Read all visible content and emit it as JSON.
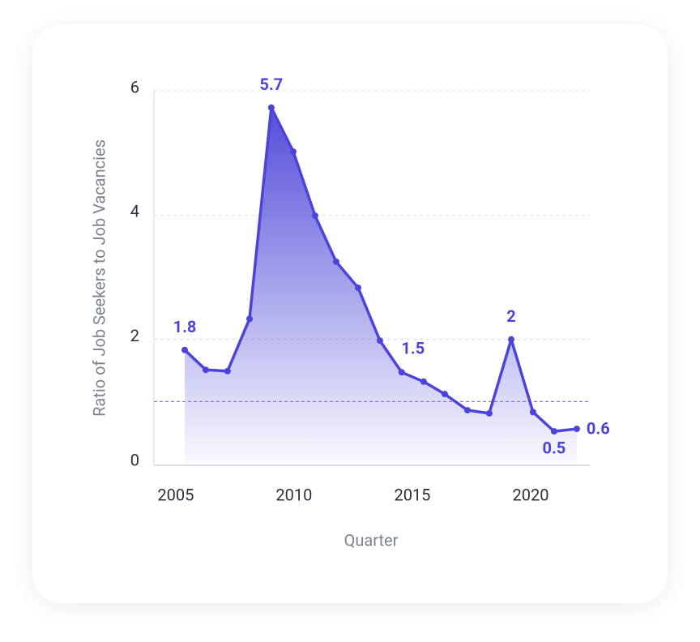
{
  "chart_data": {
    "type": "area",
    "x_label": "Quarter",
    "y_label": "Ratio of Job Seekers to Job Vacancies",
    "x": [
      2005.38,
      2006.27,
      2007.19,
      2008.12,
      2009.04,
      2009.97,
      2010.89,
      2011.78,
      2012.71,
      2013.63,
      2014.55,
      2015.48,
      2016.37,
      2017.33,
      2018.25,
      2019.18,
      2020.1,
      2020.99,
      2021.95
    ],
    "values": [
      1.83,
      1.51,
      1.49,
      2.33,
      5.73,
      5.02,
      3.99,
      3.25,
      2.83,
      1.98,
      1.47,
      1.32,
      1.12,
      0.86,
      0.81,
      2.0,
      0.83,
      0.52,
      0.56
    ],
    "value_labels": [
      "1.8",
      null,
      null,
      null,
      "5.7",
      null,
      null,
      null,
      null,
      null,
      "1.5",
      null,
      null,
      null,
      null,
      "2",
      null,
      "0.5",
      "0.6"
    ],
    "color": "#4b44d8",
    "reference_line": 1,
    "xlim": [
      2004.08,
      2022.5
    ],
    "xticks": [
      2005,
      2010,
      2015,
      2020
    ],
    "ylim": [
      0,
      6
    ],
    "yticks": [
      0,
      2,
      4,
      6
    ],
    "grid": true
  }
}
